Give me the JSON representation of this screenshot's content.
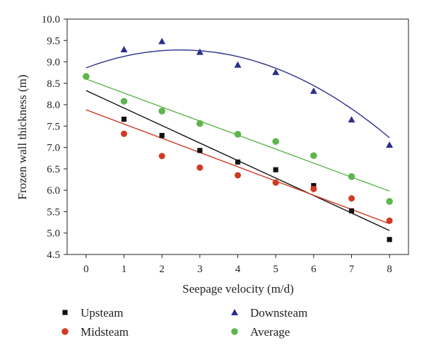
{
  "chart_data": {
    "type": "scatter",
    "xlabel": "Seepage velocity (m/d)",
    "ylabel": "Frozen wall thickness (m)",
    "xlim": [
      -0.5,
      8.5
    ],
    "ylim": [
      4.5,
      10.0
    ],
    "x_ticks": [
      0,
      1,
      2,
      3,
      4,
      5,
      6,
      7,
      8
    ],
    "y_ticks": [
      "4.5",
      "5.0",
      "5.5",
      "6.0",
      "6.5",
      "7.0",
      "7.5",
      "8.0",
      "8.5",
      "9.0",
      "9.5",
      "10.0"
    ],
    "grid": false,
    "legend_position": "bottom",
    "series": [
      {
        "name": "Upsteam",
        "marker": "square",
        "color": "#111111",
        "x": [
          1,
          2,
          3,
          4,
          5,
          6,
          7,
          8
        ],
        "y": [
          7.66,
          7.28,
          6.93,
          6.66,
          6.48,
          6.11,
          5.52,
          4.85
        ],
        "fit": {
          "kind": "linear",
          "from": 0,
          "to": 8,
          "start": 8.33,
          "end": 5.06
        }
      },
      {
        "name": "Midsteam",
        "marker": "circle",
        "color": "#d03a22",
        "x": [
          1,
          2,
          3,
          4,
          5,
          6,
          7,
          8
        ],
        "y": [
          7.32,
          6.8,
          6.53,
          6.35,
          6.18,
          6.03,
          5.81,
          5.29
        ],
        "fit": {
          "kind": "linear",
          "from": 0,
          "to": 8,
          "start": 7.88,
          "end": 5.22
        }
      },
      {
        "name": "Downsteam",
        "marker": "triangle",
        "color": "#2c2f8c",
        "x": [
          1,
          2,
          3,
          4,
          5,
          6,
          7,
          8
        ],
        "y": [
          9.29,
          9.48,
          9.23,
          8.93,
          8.76,
          8.32,
          7.65,
          7.06
        ],
        "fit": {
          "kind": "quadratic",
          "from": 0,
          "to": 8,
          "coefficients": [
            8.86,
            0.336,
            -0.0675
          ]
        }
      },
      {
        "name": "Average",
        "marker": "circle",
        "color": "#5db64c",
        "x": [
          0,
          1,
          2,
          3,
          4,
          5,
          6,
          7,
          8
        ],
        "y": [
          8.66,
          8.08,
          7.85,
          7.56,
          7.31,
          7.14,
          6.81,
          6.32,
          5.74
        ],
        "fit": {
          "kind": "linear",
          "from": 0,
          "to": 8,
          "start": 8.6,
          "end": 5.98
        }
      }
    ]
  }
}
